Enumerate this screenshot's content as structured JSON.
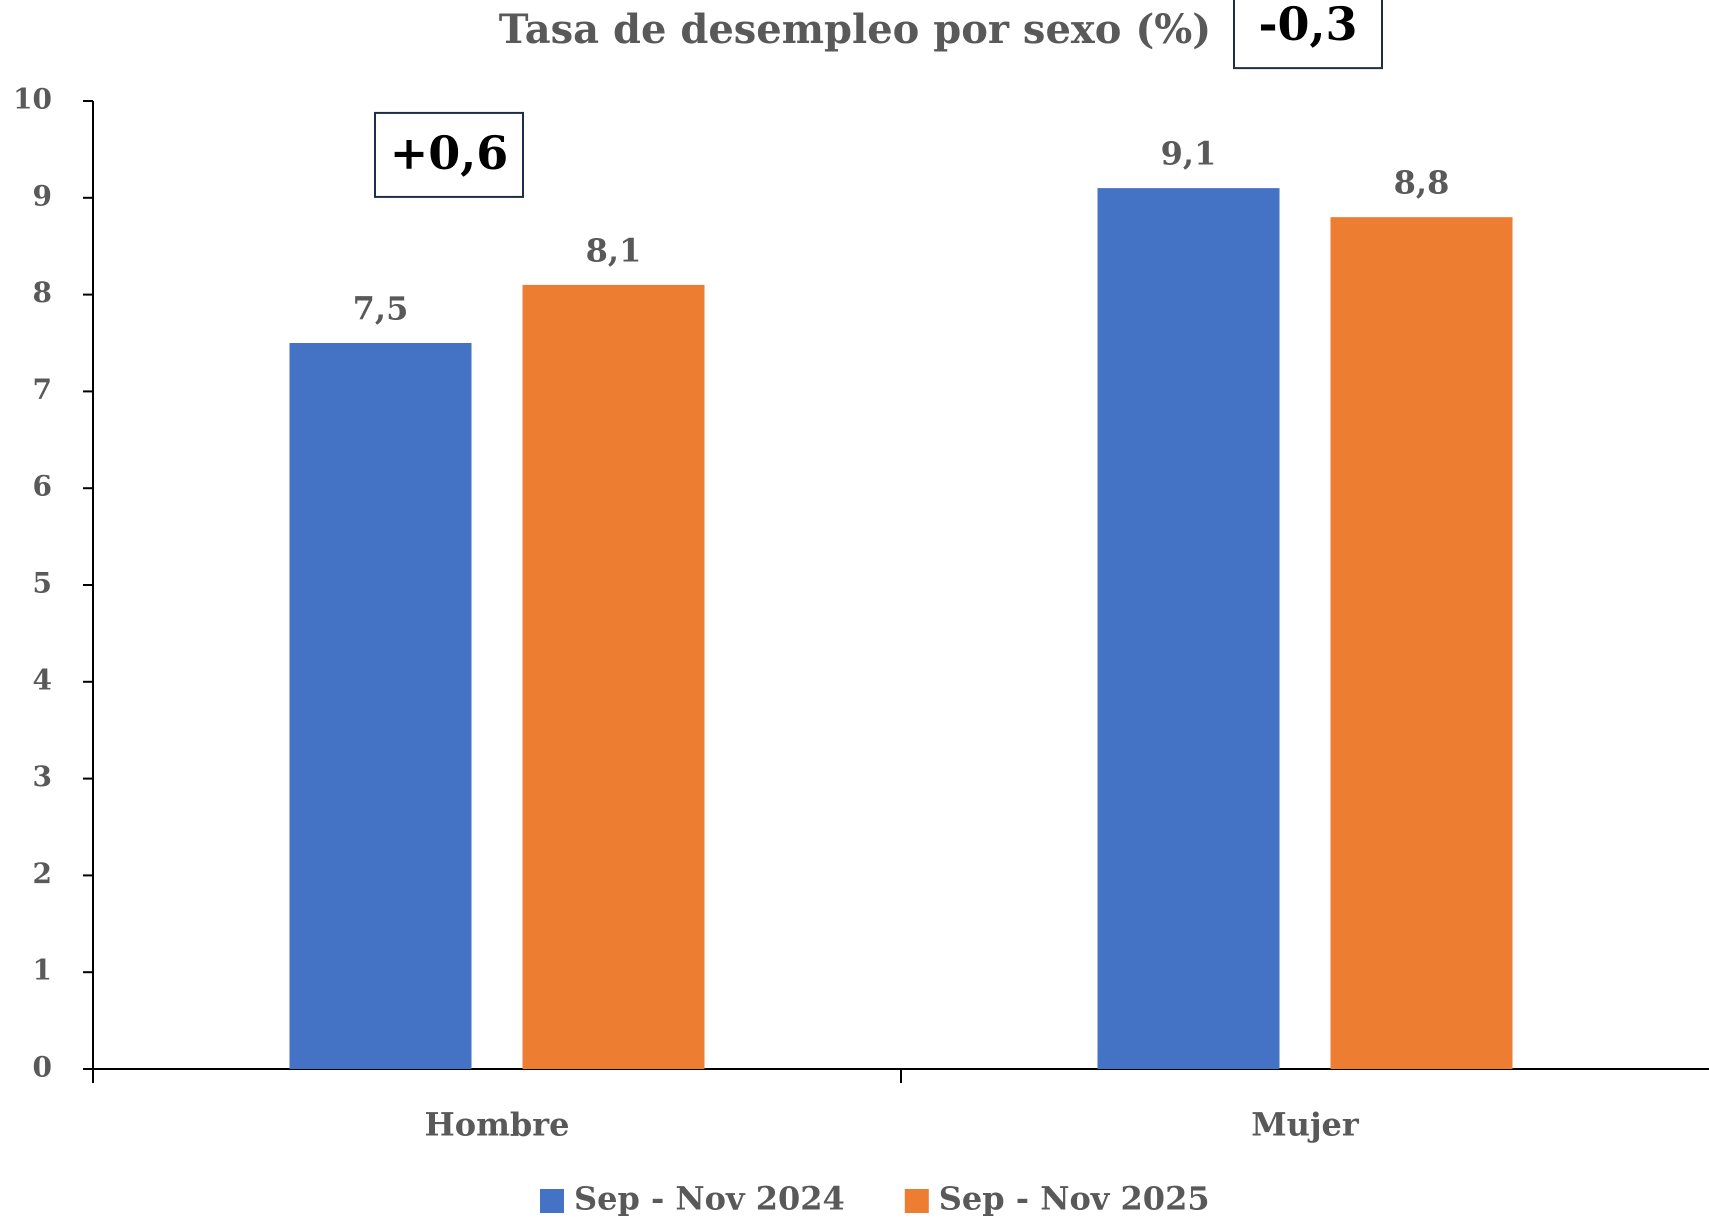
{
  "chart_data": {
    "type": "bar",
    "title": "Tasa de desempleo por sexo (%)",
    "categories": [
      "Hombre",
      "Mujer"
    ],
    "series": [
      {
        "name": "Sep - Nov 2024",
        "color": "#4472c4",
        "values": [
          7.5,
          9.1
        ],
        "value_labels": [
          "7,5",
          "9,1"
        ]
      },
      {
        "name": "Sep - Nov 2025",
        "color": "#ed7d31",
        "values": [
          8.1,
          8.8
        ],
        "value_labels": [
          "8,1",
          "8,8"
        ]
      }
    ],
    "annotations": [
      "+0,6",
      "-0,3"
    ],
    "ylim": [
      0,
      10
    ],
    "yticks": [
      0,
      1,
      2,
      3,
      4,
      5,
      6,
      7,
      8,
      9,
      10
    ],
    "grid": false,
    "legend": "bottom"
  }
}
